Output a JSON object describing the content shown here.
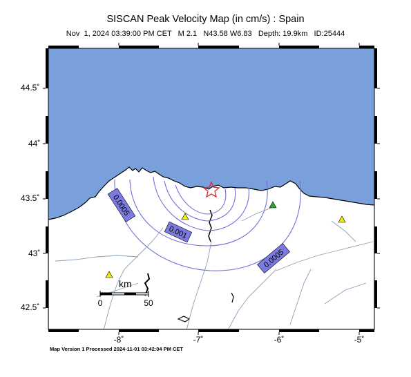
{
  "map": {
    "title": "SISCAN Peak Velocity Map (in cm/s) : Spain",
    "event": {
      "date": "Nov  1, 2024 03:39:00 PM CET",
      "magnitude": "M 2.1",
      "location": "N43.58 W6.83",
      "depth": "Depth: 19.9km",
      "id": "ID:25444"
    },
    "footer": "Map Version 1 Processed 2024-11-01 03:42:04 PM CET",
    "latitude_ticks": [
      "42.5˚",
      "43˚",
      "43.5˚",
      "44˚",
      "44.5˚"
    ],
    "longitude_ticks": [
      "-8˚",
      "-7˚",
      "-6˚",
      "-5˚"
    ],
    "contour_labels": [
      "0.0005",
      "0.001",
      "0.0005"
    ],
    "scale_bar": {
      "unit": "km",
      "start": "0",
      "end": "50"
    },
    "colors": {
      "sea": "#7aa0dc",
      "land": "#ffffff",
      "contours": "#7070d8",
      "contour_label_bg": "#7a7ae0",
      "rivers": "#8aa0b8",
      "epicenter": "#e0202a",
      "station_yellow": "#f4ee00",
      "station_green": "#2aa52a"
    },
    "markers": {
      "epicenter": "red-star-icon",
      "stations": [
        "yellow-triangle-icon",
        "green-triangle-icon"
      ]
    }
  }
}
